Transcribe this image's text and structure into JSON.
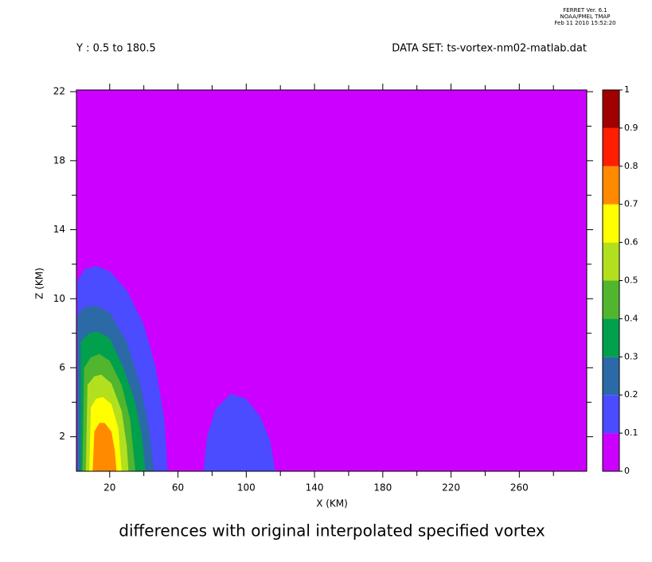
{
  "header": {
    "program": "FERRET Ver. 6.1",
    "org": "NOAA/PMEL TMAP",
    "timestamp": "Feb 11 2010 15:52:20"
  },
  "chart_data": {
    "type": "contour",
    "subtitle_left": "Y : 0.5 to 180.5",
    "subtitle_right": "DATA SET: ts-vortex-nm02-matlab.dat",
    "title": "differences with original interpolated specified vortex",
    "x_label": "X (KM)",
    "y_label": "Z (KM)",
    "xlim": [
      0.5,
      299.5
    ],
    "xticks": [
      20,
      60,
      100,
      140,
      180,
      220,
      260
    ],
    "x_minor_ticks": [
      40,
      80,
      120,
      160,
      200,
      240,
      280
    ],
    "ylim": [
      0,
      22.1
    ],
    "yticks": [
      2,
      6,
      10,
      14,
      18,
      22
    ],
    "y_minor_ticks": [
      4,
      8,
      12,
      16,
      20
    ],
    "levels": [
      0,
      0.1,
      0.2,
      0.3,
      0.4,
      0.5,
      0.6,
      0.7,
      0.8,
      0.9,
      1
    ],
    "colors": [
      "#cc00ff",
      "#4b4bff",
      "#2b6aa6",
      "#00a04c",
      "#52b52e",
      "#b3e01e",
      "#ffff00",
      "#ff8a00",
      "#ff1e00",
      "#a00000"
    ],
    "contours": [
      {
        "level": 0.1,
        "x": [
          1,
          1,
          5,
          12,
          20,
          30,
          40,
          47,
          52,
          54
        ],
        "z": [
          0,
          11,
          11.7,
          11.9,
          11.6,
          10.5,
          8.5,
          6,
          3,
          0
        ]
      },
      {
        "level": 0.1,
        "x": [
          75,
          77,
          82,
          91,
          100,
          108,
          114,
          117
        ],
        "z": [
          0,
          2,
          3.6,
          4.5,
          4.2,
          3.2,
          1.8,
          0
        ]
      },
      {
        "level": 0.2,
        "x": [
          1,
          1,
          5,
          12,
          20,
          30,
          38,
          43,
          46
        ],
        "z": [
          0,
          9,
          9.5,
          9.6,
          9.2,
          7.5,
          5,
          2.5,
          0
        ]
      },
      {
        "level": 0.3,
        "x": [
          3,
          3,
          8,
          13,
          20,
          28,
          35,
          39,
          41
        ],
        "z": [
          0,
          7.5,
          8,
          8.1,
          7.7,
          6,
          4,
          2,
          0
        ]
      },
      {
        "level": 0.4,
        "x": [
          4,
          5,
          9,
          14,
          20,
          27,
          32,
          35
        ],
        "z": [
          0,
          6,
          6.6,
          6.8,
          6.4,
          5,
          3,
          0
        ]
      },
      {
        "level": 0.5,
        "x": [
          6,
          7,
          11,
          15,
          21,
          27,
          30,
          31
        ],
        "z": [
          0,
          5,
          5.5,
          5.6,
          5.1,
          3.5,
          1.5,
          0
        ]
      },
      {
        "level": 0.6,
        "x": [
          8,
          9,
          12,
          16,
          21,
          25,
          27
        ],
        "z": [
          0,
          3.7,
          4.2,
          4.3,
          3.9,
          2.5,
          0
        ]
      },
      {
        "level": 0.7,
        "x": [
          10,
          11,
          14,
          17,
          21,
          23,
          24
        ],
        "z": [
          0,
          2.3,
          2.8,
          2.8,
          2.3,
          1.2,
          0
        ]
      }
    ]
  }
}
